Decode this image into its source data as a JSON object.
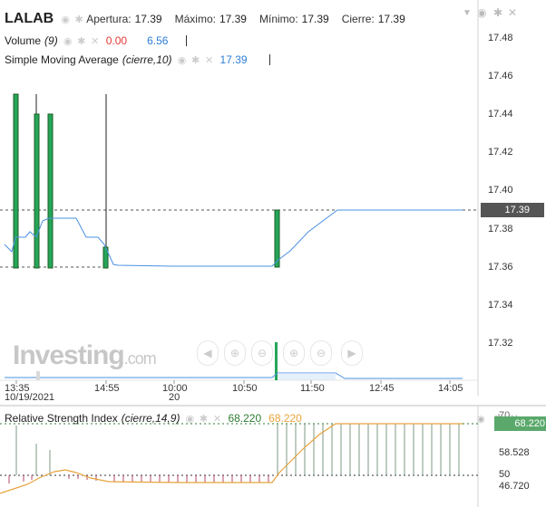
{
  "header": {
    "ticker": "LALAB",
    "ohlc": [
      {
        "label": "Apertura:",
        "value": "17.39"
      },
      {
        "label": "Máximo:",
        "value": "17.39"
      },
      {
        "label": "Mínimo:",
        "value": "17.39"
      },
      {
        "label": "Cierre:",
        "value": "17.39"
      }
    ]
  },
  "volume": {
    "label": "Volume",
    "param": "(9)",
    "value_red": "0.00",
    "value_blue": "6.56"
  },
  "sma": {
    "label": "Simple Moving Average",
    "param": "(cierre,10)",
    "value": "17.39"
  },
  "price_axis": {
    "ticks": [
      "17.48",
      "17.46",
      "17.44",
      "17.42",
      "17.40",
      "17.38",
      "17.36",
      "17.34",
      "17.32"
    ],
    "current": "17.39"
  },
  "time_axis": {
    "ticks": [
      "13:35",
      "14:55",
      "10:00",
      "10:50",
      "11:50",
      "12:45",
      "14:05"
    ],
    "date": "10/19/2021",
    "day": "20"
  },
  "rsi": {
    "label": "Relative Strength Index",
    "param": "(cierre,14,9)",
    "value1": "68.220",
    "value2": "68.220",
    "axis": [
      "58.528",
      "50",
      "46.720"
    ],
    "axis_partial": "70",
    "current": "68.220"
  },
  "watermark": {
    "brand": "Investing",
    "suffix": ".com"
  },
  "colors": {
    "up_candle": "#26a55a",
    "line": "#4a90e2",
    "rsi_orange": "#e8a33d",
    "rsi_green": "#2e7d32",
    "accent_red": "#e53935"
  },
  "icons": [
    "eye-icon",
    "gear-icon",
    "close-icon",
    "chevron-down-icon",
    "arrow-left-icon",
    "zoom-in-icon",
    "zoom-out-icon",
    "arrow-right-icon"
  ]
}
